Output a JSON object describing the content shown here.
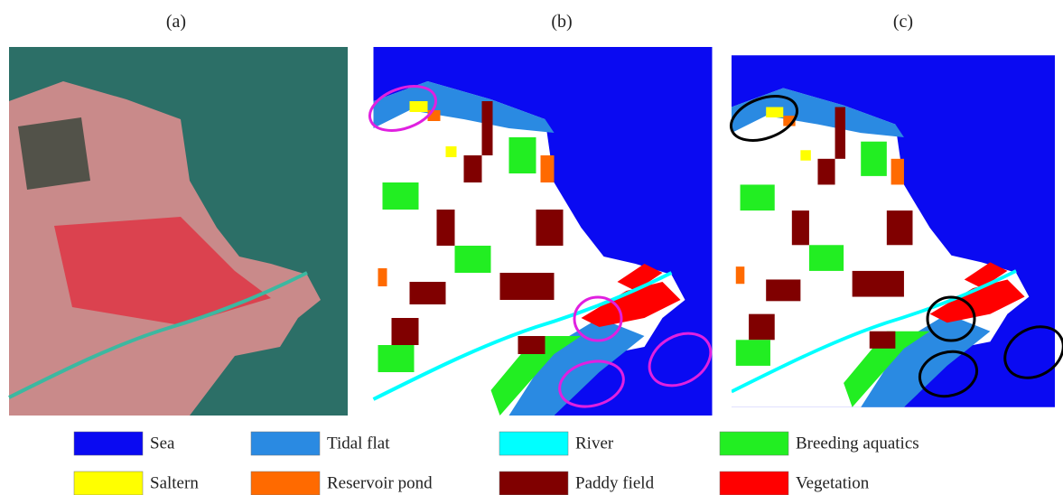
{
  "panels": [
    {
      "label": "(a)"
    },
    {
      "label": "(b)"
    },
    {
      "label": "(c)"
    }
  ],
  "legend": {
    "items": [
      {
        "name": "Sea",
        "color": "#0a0af2"
      },
      {
        "name": "Tidal flat",
        "color": "#2a8ae2"
      },
      {
        "name": "River",
        "color": "#00ffff"
      },
      {
        "name": "Breeding aquatics",
        "color": "#22ee22"
      },
      {
        "name": "Saltern",
        "color": "#ffff00"
      },
      {
        "name": "Reservoir pond",
        "color": "#ff6a00"
      },
      {
        "name": "Paddy field",
        "color": "#800000"
      },
      {
        "name": "Vegetation",
        "color": "#ff0000"
      }
    ]
  }
}
